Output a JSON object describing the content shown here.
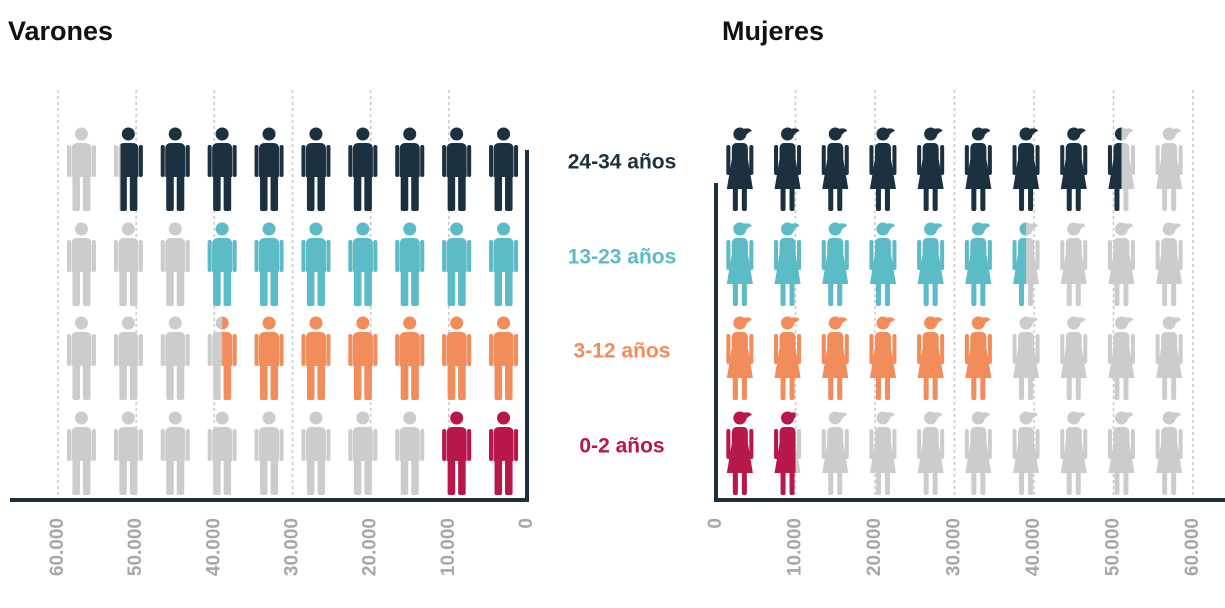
{
  "chart_data": {
    "type": "pictogram",
    "categories": [
      "24-34 años",
      "13-23 años",
      "3-12 años",
      "0-2 años"
    ],
    "colors": [
      "#1b3140",
      "#5bbcc8",
      "#f28c5a",
      "#b8174a"
    ],
    "empty_color": "#cccccc",
    "panels": [
      {
        "title": "Varones",
        "icon": "male",
        "direction": "left",
        "values": [
          52000,
          42000,
          39000,
          12000
        ],
        "xlim": [
          0,
          60000
        ],
        "xticks": [
          0,
          {
            "value": 10000,
            "label": "10.000"
          },
          {
            "value": 20000,
            "label": "20.000"
          },
          {
            "value": 30000,
            "label": "30.000"
          },
          {
            "value": 40000,
            "label": "40.000"
          },
          {
            "value": 50000,
            "label": "50.000"
          },
          {
            "value": 60000,
            "label": "60.000"
          }
        ]
      },
      {
        "title": "Mujeres",
        "icon": "female",
        "direction": "right",
        "values": [
          51000,
          39000,
          36000,
          10000
        ],
        "xlim": [
          0,
          60000
        ],
        "xticks": [
          0,
          {
            "value": 10000,
            "label": "10.000"
          },
          {
            "value": 20000,
            "label": "20.000"
          },
          {
            "value": 30000,
            "label": "30.000"
          },
          {
            "value": 40000,
            "label": "40.000"
          },
          {
            "value": 50000,
            "label": "50.000"
          },
          {
            "value": 60000,
            "label": "60.000"
          }
        ]
      }
    ],
    "grid": true
  }
}
